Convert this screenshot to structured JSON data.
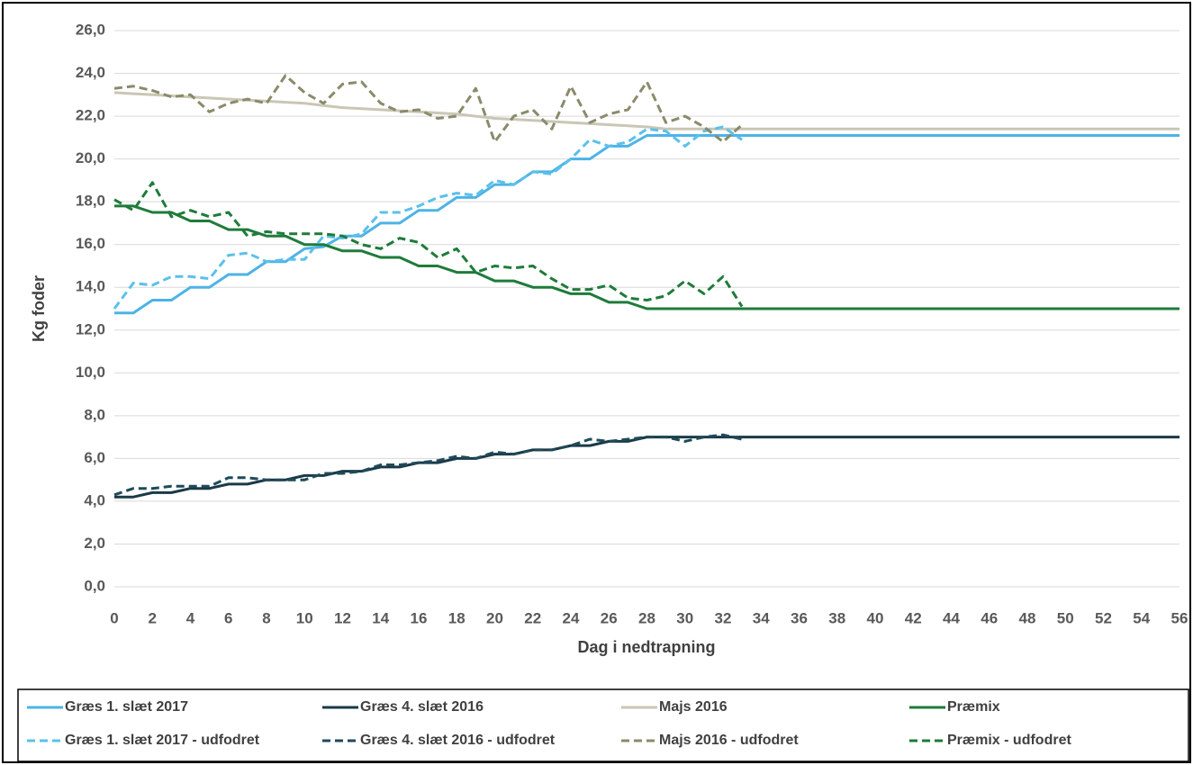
{
  "chart_data": {
    "type": "line",
    "x_label": "Dag i nedtrapning",
    "y_label": "Kg foder",
    "x": [
      0,
      1,
      2,
      3,
      4,
      5,
      6,
      7,
      8,
      9,
      10,
      11,
      12,
      13,
      14,
      15,
      16,
      17,
      18,
      19,
      20,
      21,
      22,
      23,
      24,
      25,
      26,
      27,
      28,
      29,
      30,
      31,
      32,
      33,
      34,
      35,
      36,
      37,
      38,
      39,
      40,
      41,
      42,
      43,
      44,
      45,
      46,
      47,
      48,
      49,
      50,
      51,
      52,
      53,
      54,
      55,
      56
    ],
    "xlim": [
      0,
      56
    ],
    "xticks": [
      0,
      2,
      4,
      6,
      8,
      10,
      12,
      14,
      16,
      18,
      20,
      22,
      24,
      26,
      28,
      30,
      32,
      34,
      36,
      38,
      40,
      42,
      44,
      46,
      48,
      50,
      52,
      54,
      56
    ],
    "ylim": [
      0,
      26
    ],
    "yticks": [
      {
        "value": 0,
        "label": "0,0"
      },
      {
        "value": 2,
        "label": "2,0"
      },
      {
        "value": 4,
        "label": "4,0"
      },
      {
        "value": 6,
        "label": "6,0"
      },
      {
        "value": 8,
        "label": "8,0"
      },
      {
        "value": 10,
        "label": "10,0"
      },
      {
        "value": 12,
        "label": "12,0"
      },
      {
        "value": 14,
        "label": "14,0"
      },
      {
        "value": 16,
        "label": "16,0"
      },
      {
        "value": 18,
        "label": "18,0"
      },
      {
        "value": 20,
        "label": "20,0"
      },
      {
        "value": 22,
        "label": "22,0"
      },
      {
        "value": 24,
        "label": "24,0"
      },
      {
        "value": 26,
        "label": "26,0"
      }
    ],
    "grid": true,
    "legend": "bottom",
    "series": [
      {
        "name": "Græs 1. slæt 2017",
        "color": "#4db3e6",
        "style": "solid",
        "values": [
          12.8,
          12.8,
          13.4,
          13.4,
          14.0,
          14.0,
          14.6,
          14.6,
          15.2,
          15.2,
          15.8,
          15.9,
          16.4,
          16.4,
          17.0,
          17.0,
          17.6,
          17.6,
          18.2,
          18.2,
          18.8,
          18.8,
          19.4,
          19.4,
          20.0,
          20.0,
          20.6,
          20.6,
          21.1,
          21.1,
          21.1,
          21.1,
          21.1,
          21.1,
          21.1,
          21.1,
          21.1,
          21.1,
          21.1,
          21.1,
          21.1,
          21.1,
          21.1,
          21.1,
          21.1,
          21.1,
          21.1,
          21.1,
          21.1,
          21.1,
          21.1,
          21.1,
          21.1,
          21.1,
          21.1,
          21.1,
          21.1
        ]
      },
      {
        "name": "Græs 4. slæt 2016",
        "color": "#1a3a47",
        "style": "solid",
        "values": [
          4.2,
          4.2,
          4.4,
          4.4,
          4.6,
          4.6,
          4.8,
          4.8,
          5.0,
          5.0,
          5.2,
          5.2,
          5.4,
          5.4,
          5.6,
          5.6,
          5.8,
          5.8,
          6.0,
          6.0,
          6.2,
          6.2,
          6.4,
          6.4,
          6.6,
          6.6,
          6.8,
          6.8,
          7.0,
          7.0,
          7.0,
          7.0,
          7.0,
          7.0,
          7.0,
          7.0,
          7.0,
          7.0,
          7.0,
          7.0,
          7.0,
          7.0,
          7.0,
          7.0,
          7.0,
          7.0,
          7.0,
          7.0,
          7.0,
          7.0,
          7.0,
          7.0,
          7.0,
          7.0,
          7.0,
          7.0,
          7.0
        ]
      },
      {
        "name": "Majs 2016",
        "color": "#c9c7b5",
        "style": "solid",
        "values": [
          23.1,
          23.05,
          23.0,
          22.95,
          22.9,
          22.85,
          22.8,
          22.75,
          22.7,
          22.65,
          22.6,
          22.5,
          22.4,
          22.35,
          22.3,
          22.25,
          22.2,
          22.15,
          22.1,
          22.0,
          21.9,
          21.85,
          21.8,
          21.75,
          21.7,
          21.65,
          21.6,
          21.55,
          21.5,
          21.4,
          21.4,
          21.4,
          21.4,
          21.4,
          21.4,
          21.4,
          21.4,
          21.4,
          21.4,
          21.4,
          21.4,
          21.4,
          21.4,
          21.4,
          21.4,
          21.4,
          21.4,
          21.4,
          21.4,
          21.4,
          21.4,
          21.4,
          21.4,
          21.4,
          21.4,
          21.4,
          21.4
        ]
      },
      {
        "name": "Præmix",
        "color": "#1e7b3a",
        "style": "solid",
        "values": [
          17.8,
          17.8,
          17.5,
          17.5,
          17.1,
          17.1,
          16.7,
          16.7,
          16.4,
          16.4,
          16.0,
          16.0,
          15.7,
          15.7,
          15.4,
          15.4,
          15.0,
          15.0,
          14.7,
          14.7,
          14.3,
          14.3,
          14.0,
          14.0,
          13.7,
          13.7,
          13.3,
          13.3,
          13.0,
          13.0,
          13.0,
          13.0,
          13.0,
          13.0,
          13.0,
          13.0,
          13.0,
          13.0,
          13.0,
          13.0,
          13.0,
          13.0,
          13.0,
          13.0,
          13.0,
          13.0,
          13.0,
          13.0,
          13.0,
          13.0,
          13.0,
          13.0,
          13.0,
          13.0,
          13.0,
          13.0,
          13.0
        ]
      },
      {
        "name": "Græs 1. slæt 2017 - udfodret",
        "color": "#5bc0eb",
        "style": "dashed",
        "values": [
          13.0,
          14.2,
          14.1,
          14.5,
          14.5,
          14.4,
          15.5,
          15.6,
          15.2,
          15.3,
          15.3,
          16.4,
          16.3,
          16.5,
          17.5,
          17.5,
          17.8,
          18.2,
          18.4,
          18.3,
          19.0,
          18.8,
          19.4,
          19.3,
          20.0,
          20.9,
          20.6,
          20.8,
          21.4,
          21.3,
          20.6,
          21.3,
          21.5,
          20.9,
          null,
          null,
          null,
          null,
          null,
          null,
          null,
          null,
          null,
          null,
          null,
          null,
          null,
          null,
          null,
          null,
          null,
          null,
          null,
          null,
          null,
          null,
          null
        ]
      },
      {
        "name": "Græs 4. slæt 2016 - udfodret",
        "color": "#1f4a5a",
        "style": "dashed",
        "values": [
          4.3,
          4.6,
          4.6,
          4.7,
          4.7,
          4.7,
          5.1,
          5.1,
          5.0,
          5.0,
          5.0,
          5.3,
          5.3,
          5.4,
          5.7,
          5.7,
          5.8,
          5.9,
          6.1,
          6.0,
          6.3,
          6.2,
          6.4,
          6.4,
          6.6,
          6.9,
          6.8,
          6.9,
          7.0,
          7.0,
          6.8,
          7.0,
          7.1,
          6.9,
          null,
          null,
          null,
          null,
          null,
          null,
          null,
          null,
          null,
          null,
          null,
          null,
          null,
          null,
          null,
          null,
          null,
          null,
          null,
          null,
          null,
          null,
          null
        ]
      },
      {
        "name": "Majs 2016 - udfodret",
        "color": "#8b8a6b",
        "style": "dashed",
        "values": [
          23.3,
          23.4,
          23.2,
          22.9,
          23.0,
          22.2,
          22.6,
          22.8,
          22.6,
          23.9,
          23.1,
          22.6,
          23.5,
          23.6,
          22.6,
          22.2,
          22.3,
          21.9,
          22.0,
          23.3,
          20.8,
          22.0,
          22.3,
          21.4,
          23.4,
          21.7,
          22.1,
          22.3,
          23.6,
          21.7,
          22.0,
          21.5,
          20.8,
          21.6,
          null,
          null,
          null,
          null,
          null,
          null,
          null,
          null,
          null,
          null,
          null,
          null,
          null,
          null,
          null,
          null,
          null,
          null,
          null,
          null,
          null,
          null,
          null
        ]
      },
      {
        "name": "Præmix - udfodret",
        "color": "#1e7b3a",
        "style": "dashed",
        "values": [
          18.1,
          17.6,
          18.9,
          17.3,
          17.6,
          17.3,
          17.5,
          16.4,
          16.6,
          16.5,
          16.5,
          16.5,
          16.4,
          16.0,
          15.8,
          16.3,
          16.1,
          15.4,
          15.8,
          14.7,
          15.0,
          14.9,
          15.0,
          14.4,
          13.9,
          13.9,
          14.1,
          13.5,
          13.4,
          13.6,
          14.3,
          13.7,
          14.5,
          13.1,
          null,
          null,
          null,
          null,
          null,
          null,
          null,
          null,
          null,
          null,
          null,
          null,
          null,
          null,
          null,
          null,
          null,
          null,
          null,
          null,
          null,
          null,
          null
        ]
      }
    ]
  }
}
